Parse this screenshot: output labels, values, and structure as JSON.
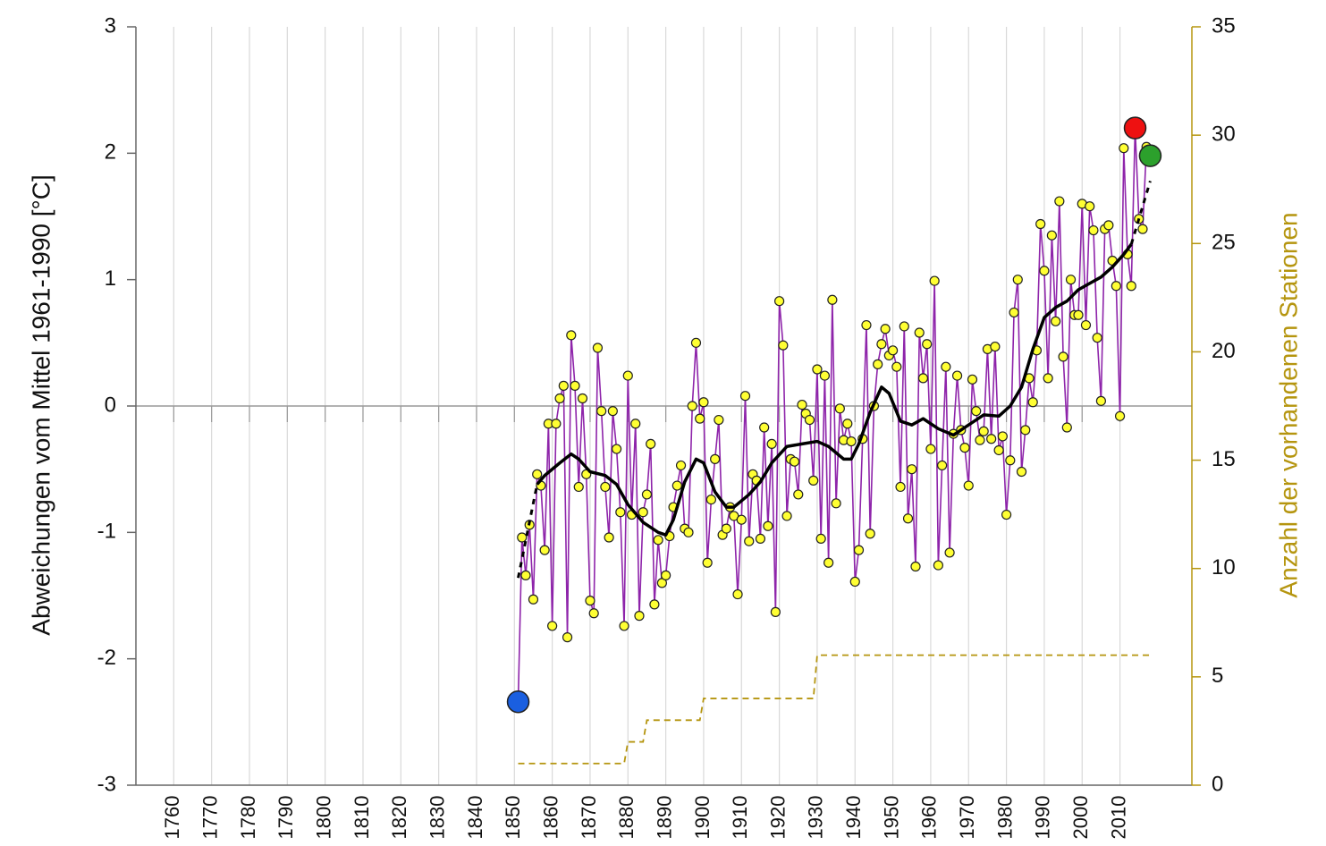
{
  "chart_data": {
    "type": "line",
    "y_label": "Abweichungen vom Mittel 1961-1990 [°C]",
    "y2_label": "Anzahl der vorhandenen Stationen",
    "xlim": [
      1750,
      2029
    ],
    "xticks": [
      1760,
      1770,
      1780,
      1790,
      1800,
      1810,
      1820,
      1830,
      1840,
      1850,
      1860,
      1870,
      1880,
      1890,
      1900,
      1910,
      1920,
      1930,
      1940,
      1950,
      1960,
      1970,
      1980,
      1990,
      2000,
      2010
    ],
    "ylim": [
      -3,
      3
    ],
    "yticks": [
      -3,
      -2,
      -1,
      0,
      1,
      2,
      3
    ],
    "y2lim": [
      0,
      35
    ],
    "y2ticks": [
      0,
      5,
      10,
      15,
      20,
      25,
      30,
      35
    ],
    "y2_color": "#b5950f",
    "grid": true,
    "x": [
      1851,
      1852,
      1853,
      1854,
      1855,
      1856,
      1857,
      1858,
      1859,
      1860,
      1861,
      1862,
      1863,
      1864,
      1865,
      1866,
      1867,
      1868,
      1869,
      1870,
      1871,
      1872,
      1873,
      1874,
      1875,
      1876,
      1877,
      1878,
      1879,
      1880,
      1881,
      1882,
      1883,
      1884,
      1885,
      1886,
      1887,
      1888,
      1889,
      1890,
      1891,
      1892,
      1893,
      1894,
      1895,
      1896,
      1897,
      1898,
      1899,
      1900,
      1901,
      1902,
      1903,
      1904,
      1905,
      1906,
      1907,
      1908,
      1909,
      1910,
      1911,
      1912,
      1913,
      1914,
      1915,
      1916,
      1917,
      1918,
      1919,
      1920,
      1921,
      1922,
      1923,
      1924,
      1925,
      1926,
      1927,
      1928,
      1929,
      1930,
      1931,
      1932,
      1933,
      1934,
      1935,
      1936,
      1937,
      1938,
      1939,
      1940,
      1941,
      1942,
      1943,
      1944,
      1945,
      1946,
      1947,
      1948,
      1949,
      1950,
      1951,
      1952,
      1953,
      1954,
      1955,
      1956,
      1957,
      1958,
      1959,
      1960,
      1961,
      1962,
      1963,
      1964,
      1965,
      1966,
      1967,
      1968,
      1969,
      1970,
      1971,
      1972,
      1973,
      1974,
      1975,
      1976,
      1977,
      1978,
      1979,
      1980,
      1981,
      1982,
      1983,
      1984,
      1985,
      1986,
      1987,
      1988,
      1989,
      1990,
      1991,
      1992,
      1993,
      1994,
      1995,
      1996,
      1997,
      1998,
      1999,
      2000,
      2001,
      2002,
      2003,
      2004,
      2005,
      2006,
      2007,
      2008,
      2009,
      2010,
      2011,
      2012,
      2013,
      2014,
      2015,
      2016,
      2017,
      2018
    ],
    "series": [
      {
        "color": "#8e24aa",
        "marker_color": "#ffff33",
        "values": [
          -2.34,
          -1.04,
          -1.34,
          -0.94,
          -1.53,
          -0.54,
          -0.63,
          -1.14,
          -0.14,
          -1.74,
          -0.14,
          0.06,
          0.16,
          -1.83,
          0.56,
          0.16,
          -0.64,
          0.06,
          -0.54,
          -1.54,
          -1.64,
          0.46,
          -0.04,
          -0.64,
          -1.04,
          -0.04,
          -0.34,
          -0.84,
          -1.74,
          0.24,
          -0.86,
          -0.14,
          -1.66,
          -0.84,
          -0.7,
          -0.3,
          -1.57,
          -1.06,
          -1.4,
          -1.34,
          -1.03,
          -0.8,
          -0.63,
          -0.47,
          -0.97,
          -1.0,
          0,
          0.5,
          -0.1,
          0.03,
          -1.24,
          -0.74,
          -0.42,
          -0.11,
          -1.02,
          -0.97,
          -0.8,
          -0.87,
          -1.49,
          -0.9,
          0.08,
          -1.07,
          -0.54,
          -0.59,
          -1.05,
          -0.17,
          -0.95,
          -0.3,
          -1.63,
          0.83,
          0.48,
          -0.87,
          -0.42,
          -0.44,
          -0.7,
          0.01,
          -0.06,
          -0.11,
          -0.59,
          0.29,
          -1.05,
          0.24,
          -1.24,
          0.84,
          -0.77,
          -0.02,
          -0.27,
          -0.14,
          -0.28,
          -1.39,
          -1.14,
          -0.26,
          0.64,
          -1.01,
          0,
          0.33,
          0.49,
          0.61,
          0.4,
          0.44,
          0.31,
          -0.64,
          0.63,
          -0.89,
          -0.5,
          -1.27,
          0.58,
          0.22,
          0.49,
          -0.34,
          0.99,
          -1.26,
          -0.47,
          0.31,
          -1.16,
          -0.22,
          0.24,
          -0.19,
          -0.33,
          -0.63,
          0.21,
          -0.04,
          -0.27,
          -0.2,
          0.45,
          -0.26,
          0.47,
          -0.35,
          -0.24,
          -0.86,
          -0.43,
          0.74,
          1.0,
          -0.52,
          -0.19,
          0.22,
          0.03,
          0.44,
          1.44,
          1.07,
          0.22,
          1.35,
          0.67,
          1.62,
          0.39,
          -0.17,
          1.0,
          0.72,
          0.72,
          1.6,
          0.64,
          1.58,
          1.39,
          0.54,
          0.04,
          1.4,
          1.43,
          1.15,
          0.95,
          -0.08,
          2.04,
          1.2,
          0.95,
          2.2,
          1.48,
          1.4,
          2.05,
          1.98
        ]
      }
    ],
    "trend": {
      "color": "#000000",
      "x": [
        1856,
        1858,
        1862,
        1865,
        1867,
        1870,
        1874,
        1877,
        1880,
        1884,
        1888,
        1890,
        1892,
        1895,
        1898,
        1900,
        1903,
        1906,
        1908,
        1912,
        1915,
        1918,
        1922,
        1926,
        1930,
        1933,
        1937,
        1939,
        1941,
        1944,
        1947,
        1949,
        1952,
        1955,
        1958,
        1962,
        1966,
        1970,
        1974,
        1978,
        1981,
        1984,
        1987,
        1990,
        1993,
        1996,
        1999,
        2002,
        2005,
        2008,
        2011,
        2013
      ],
      "values": [
        -0.62,
        -0.55,
        -0.45,
        -0.38,
        -0.42,
        -0.52,
        -0.55,
        -0.62,
        -0.78,
        -0.92,
        -1.0,
        -1.02,
        -0.9,
        -0.6,
        -0.42,
        -0.45,
        -0.68,
        -0.8,
        -0.8,
        -0.7,
        -0.6,
        -0.45,
        -0.32,
        -0.3,
        -0.28,
        -0.32,
        -0.42,
        -0.42,
        -0.3,
        -0.05,
        0.15,
        0.1,
        -0.12,
        -0.15,
        -0.1,
        -0.18,
        -0.23,
        -0.15,
        -0.07,
        -0.08,
        0,
        0.15,
        0.45,
        0.7,
        0.78,
        0.83,
        0.92,
        0.97,
        1.02,
        1.1,
        1.2,
        1.28
      ]
    },
    "trend_dashed": [
      {
        "x": [
          1851,
          1856
        ],
        "values": [
          -1.36,
          -0.62
        ]
      },
      {
        "x": [
          2013,
          2018
        ],
        "values": [
          1.28,
          1.78
        ]
      }
    ],
    "stations": {
      "axis": "y2",
      "color": "#b5950f",
      "x": [
        1851,
        1879,
        1880,
        1884,
        1885,
        1899,
        1900,
        1929,
        1930,
        2018
      ],
      "values": [
        1,
        1,
        2,
        2,
        3,
        3,
        4,
        4,
        6,
        6
      ]
    },
    "highlights": [
      {
        "x": 1851,
        "value": -2.34,
        "color": "#1a5fe0"
      },
      {
        "x": 2014,
        "value": 2.2,
        "color": "#ee1111"
      },
      {
        "x": 2018,
        "value": 1.98,
        "color": "#2ca02c"
      }
    ]
  }
}
